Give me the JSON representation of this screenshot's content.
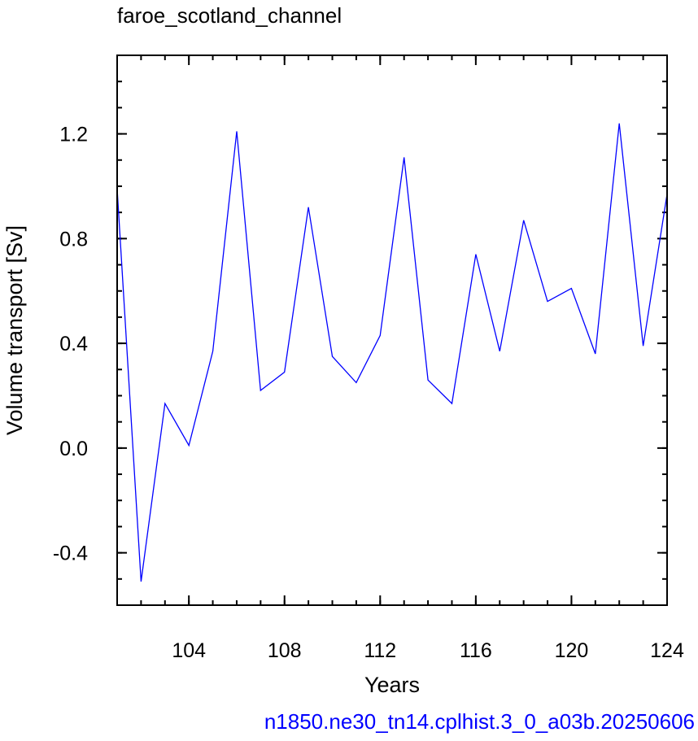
{
  "chart_data": {
    "type": "line",
    "title": "faroe_scotland_channel",
    "xlabel": "Years",
    "ylabel": "Volume transport [Sv]",
    "caption": "n1850.ne30_tn14.cplhist.3_0_a03b.20250606",
    "xlim": [
      101,
      124
    ],
    "ylim": [
      -0.6,
      1.5
    ],
    "x_ticks": [
      104,
      108,
      112,
      116,
      120,
      124
    ],
    "y_ticks": [
      -0.4,
      0.0,
      0.4,
      0.8,
      1.2
    ],
    "x_tick_labels": [
      "104",
      "108",
      "112",
      "116",
      "120",
      "124"
    ],
    "y_tick_labels": [
      "-0.4",
      "0.0",
      "0.4",
      "0.8",
      "1.2"
    ],
    "grid": false,
    "series": [
      {
        "color": "#0000ff",
        "x": [
          101,
          102,
          103,
          104,
          105,
          106,
          107,
          108,
          109,
          110,
          111,
          112,
          113,
          114,
          115,
          116,
          117,
          118,
          119,
          120,
          121,
          122,
          123,
          124
        ],
        "values": [
          0.99,
          -0.51,
          0.17,
          0.01,
          0.37,
          1.21,
          0.22,
          0.29,
          0.92,
          0.35,
          0.25,
          0.43,
          1.11,
          0.26,
          0.17,
          0.74,
          0.37,
          0.87,
          0.56,
          0.61,
          0.36,
          1.24,
          0.39,
          0.97
        ]
      }
    ]
  },
  "colors": {
    "caption": "#0000ff",
    "line": "#0000ff",
    "axis": "#000000"
  }
}
